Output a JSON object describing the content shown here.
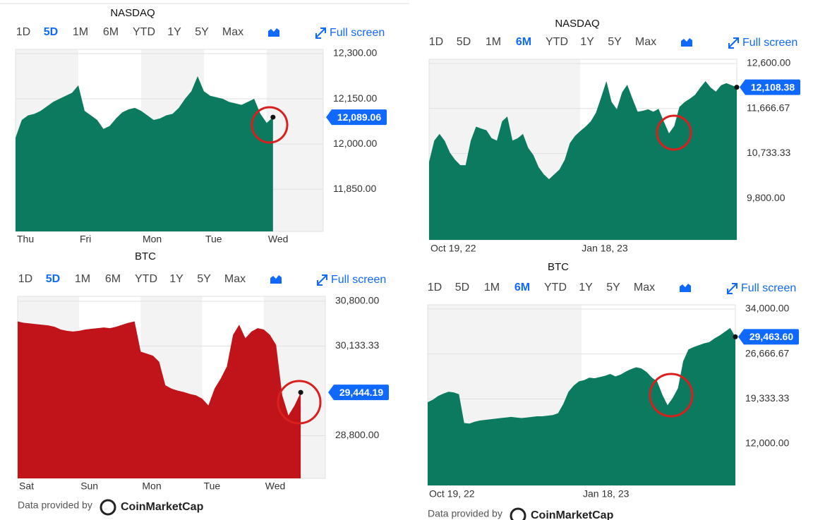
{
  "chart_data": [
    {
      "type": "area",
      "title": "NASDAQ",
      "ranges": [
        "1D",
        "5D",
        "1M",
        "6M",
        "YTD",
        "1Y",
        "5Y",
        "Max"
      ],
      "selected_range": 1,
      "full_screen": "Full screen",
      "color": "#0b7a5e",
      "xlim": [
        0,
        49
      ],
      "xticks": [
        {
          "value": 0,
          "label": "Thu"
        },
        {
          "value": 10,
          "label": "Fri"
        },
        {
          "value": 20,
          "label": "Mon"
        },
        {
          "value": 30,
          "label": "Tue"
        },
        {
          "value": 40,
          "label": "Wed"
        }
      ],
      "ylim": [
        11710,
        12314
      ],
      "yticks": [
        {
          "value": 12300,
          "label": "12,300.00"
        },
        {
          "value": 12150,
          "label": "12,150.00"
        },
        {
          "value": 12000,
          "label": "12,000.00"
        },
        {
          "value": 11850,
          "label": "11,850.00"
        }
      ],
      "values": [
        12021,
        12080,
        12095,
        12100,
        12110,
        12125,
        12140,
        12150,
        12160,
        12170,
        12195,
        12110,
        12095,
        12080,
        12050,
        12060,
        12085,
        12105,
        12115,
        12120,
        12110,
        12095,
        12080,
        12085,
        12095,
        12100,
        12120,
        12150,
        12175,
        12225,
        12175,
        12160,
        12155,
        12150,
        12140,
        12135,
        12130,
        12140,
        12150,
        12100,
        12070,
        12089.06
      ],
      "current": {
        "value": 12089.06,
        "label": "12,089.06"
      }
    },
    {
      "type": "area",
      "title": "NASDAQ",
      "ranges": [
        "1D",
        "5D",
        "1M",
        "6M",
        "YTD",
        "1Y",
        "5Y",
        "Max"
      ],
      "selected_range": 3,
      "full_screen": "Full screen",
      "color": "#0b7a5e",
      "xlim": [
        0,
        59
      ],
      "xticks": [
        {
          "value": 0,
          "label": "Oct 19, 22"
        },
        {
          "value": 29,
          "label": "Jan 18, 23"
        }
      ],
      "ylim": [
        8940,
        12688
      ],
      "yticks": [
        {
          "value": 12600,
          "label": "12,600.00"
        },
        {
          "value": 11666.67,
          "label": "11,666.67"
        },
        {
          "value": 10733.33,
          "label": "10,733.33"
        },
        {
          "value": 9800,
          "label": "9,800.00"
        }
      ],
      "values": [
        10560,
        11000,
        11140,
        10996,
        10750,
        10600,
        10490,
        10490,
        11000,
        11290,
        11250,
        11215,
        11050,
        11000,
        11400,
        11500,
        11000,
        11050,
        11140,
        10850,
        10700,
        10450,
        10300,
        10200,
        10300,
        10400,
        10600,
        10950,
        11100,
        11200,
        11290,
        11400,
        11580,
        11900,
        12235,
        11800,
        11650,
        12000,
        12160,
        11870,
        11600,
        11620,
        11650,
        11600,
        11660,
        11400,
        11150,
        11300,
        11700,
        11800,
        11870,
        11950,
        12100,
        12235,
        12100,
        12017,
        12150,
        12192,
        12150,
        12108.38
      ],
      "current": {
        "value": 12108.38,
        "label": "12,108.38"
      }
    },
    {
      "type": "area",
      "title": "BTC",
      "ranges": [
        "1D",
        "5D",
        "1M",
        "6M",
        "YTD",
        "1Y",
        "5Y",
        "Max"
      ],
      "selected_range": 1,
      "full_screen": "Full screen",
      "color": "#c0141a",
      "xlim": [
        0,
        50
      ],
      "xticks": [
        {
          "value": 0,
          "label": "Sat"
        },
        {
          "value": 10,
          "label": "Sun"
        },
        {
          "value": 20,
          "label": "Mon"
        },
        {
          "value": 30,
          "label": "Tue"
        },
        {
          "value": 40,
          "label": "Wed"
        }
      ],
      "ylim": [
        28165,
        30873
      ],
      "yticks": [
        {
          "value": 30800,
          "label": "30,800.00"
        },
        {
          "value": 30133.33,
          "label": "30,133.33"
        },
        {
          "value": 28800,
          "label": "28,800.00"
        }
      ],
      "values": [
        30500,
        30480,
        30470,
        30460,
        30450,
        30440,
        30420,
        30380,
        30360,
        30350,
        30360,
        30380,
        30390,
        30400,
        30410,
        30400,
        30420,
        30450,
        30480,
        30500,
        30050,
        30020,
        29990,
        29900,
        29550,
        29500,
        29470,
        29450,
        29420,
        29400,
        29350,
        29250,
        29500,
        29650,
        29830,
        30300,
        30450,
        30250,
        30350,
        30400,
        30380,
        30300,
        30150,
        29400,
        29100,
        29250,
        29444.19
      ],
      "current": {
        "value": 29444.19,
        "label": "29,444.19"
      },
      "footnote": "Data provided by",
      "source": "CoinMarketCap"
    },
    {
      "type": "area",
      "title": "BTC",
      "ranges": [
        "1D",
        "5D",
        "1M",
        "6M",
        "YTD",
        "1Y",
        "5Y",
        "Max"
      ],
      "selected_range": 3,
      "full_screen": "Full screen",
      "color": "#0b7a5e",
      "xlim": [
        0,
        59
      ],
      "xticks": [
        {
          "value": 0,
          "label": "Oct 19, 22"
        },
        {
          "value": 29.5,
          "label": "Jan 18, 23"
        }
      ],
      "ylim": [
        5208,
        34691
      ],
      "yticks": [
        {
          "value": 34000,
          "label": "34,000.00"
        },
        {
          "value": 26666.67,
          "label": "26,666.67"
        },
        {
          "value": 19333.33,
          "label": "19,333.33"
        },
        {
          "value": 12000,
          "label": "12,000.00"
        }
      ],
      "values": [
        18800,
        19200,
        19800,
        20200,
        20500,
        20400,
        20100,
        15400,
        15300,
        15600,
        15800,
        15900,
        16000,
        16100,
        16200,
        16300,
        16400,
        16300,
        16200,
        16300,
        16400,
        16500,
        16500,
        16600,
        16700,
        17000,
        18500,
        20500,
        21500,
        22200,
        22400,
        22800,
        22700,
        22900,
        23100,
        23400,
        23000,
        23300,
        23800,
        24200,
        24500,
        24300,
        23700,
        22800,
        22200,
        20000,
        18300,
        19500,
        21100,
        25500,
        27400,
        27800,
        28100,
        28400,
        28600,
        29200,
        29700,
        30300,
        30900,
        29463.6
      ],
      "current": {
        "value": 29463.6,
        "label": "29,463.60"
      },
      "footnote": "Data provided by",
      "source": "CoinMarketCap"
    }
  ]
}
